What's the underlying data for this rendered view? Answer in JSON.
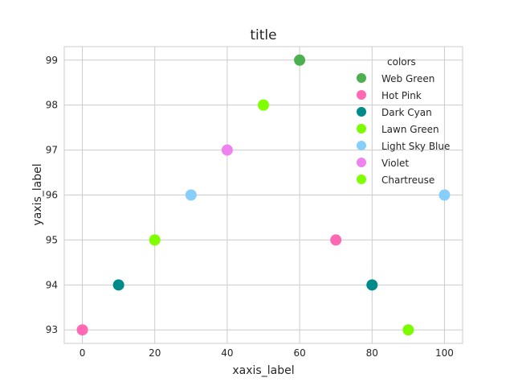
{
  "chart_data": {
    "type": "scatter",
    "title": "title",
    "xlabel": "xaxis_label",
    "ylabel": "yaxis_label",
    "xlim": [
      -5,
      105
    ],
    "ylim": [
      92.7,
      99.3
    ],
    "xticks": [
      0,
      20,
      40,
      60,
      80,
      100
    ],
    "yticks": [
      93,
      94,
      95,
      96,
      97,
      98,
      99
    ],
    "grid": true,
    "legend": {
      "title": "colors",
      "placement": "top-right"
    },
    "series": [
      {
        "name": "Web Green",
        "color": "#4caf50",
        "points": [
          [
            60,
            99
          ]
        ]
      },
      {
        "name": "Hot Pink",
        "color": "#ff69b4",
        "points": [
          [
            0,
            93
          ],
          [
            70,
            95
          ]
        ]
      },
      {
        "name": "Dark Cyan",
        "color": "#008b8b",
        "points": [
          [
            10,
            94
          ],
          [
            80,
            94
          ]
        ]
      },
      {
        "name": "Lawn Green",
        "color": "#7cfc00",
        "points": [
          [
            90,
            93
          ]
        ]
      },
      {
        "name": "Light Sky Blue",
        "color": "#87cefa",
        "points": [
          [
            30,
            96
          ],
          [
            100,
            96
          ]
        ]
      },
      {
        "name": "Violet",
        "color": "#ee82ee",
        "points": [
          [
            40,
            97
          ]
        ]
      },
      {
        "name": "Chartreuse",
        "color": "#7fff00",
        "points": [
          [
            20,
            95
          ],
          [
            50,
            98
          ]
        ]
      }
    ]
  }
}
